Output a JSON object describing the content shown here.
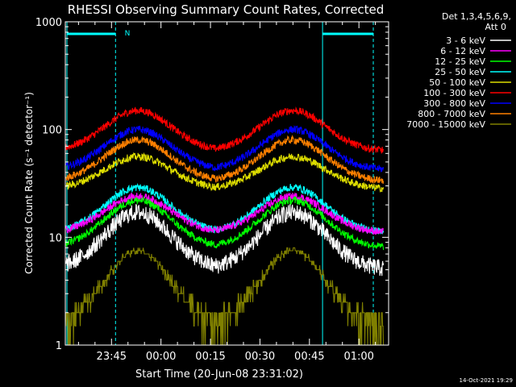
{
  "chart_data": {
    "type": "line",
    "title": "RHESSI Observing Summary Count Rates, Corrected",
    "xlabel": "Start Time (20-Jun-08 23:31:02)",
    "ylabel": "Corrected Count Rate (s⁻¹ detector⁻¹)",
    "yscale": "log",
    "ylim": [
      1,
      1000
    ],
    "xlim": [
      "23:31",
      "01:09"
    ],
    "x_ticks": [
      "23:45",
      "00:00",
      "00:15",
      "00:30",
      "00:45",
      "01:00"
    ],
    "y_ticks": [
      "1",
      "10",
      "100",
      "1000"
    ],
    "detector_label": "Det 1,3,4,5,6,9,",
    "attenuator_label": "Att 0",
    "night_marker": "N",
    "timestamp": "14-Oct-2021 19:29",
    "peak_times": [
      "23:53",
      "00:40"
    ],
    "series": [
      {
        "name": "3 - 6 keV",
        "color": "#ffffff",
        "base": 5,
        "peak": 17
      },
      {
        "name": "6 - 12 keV",
        "color": "#ff00ff",
        "base": 11,
        "peak": 24
      },
      {
        "name": "12 - 25 keV",
        "color": "#00ff00",
        "base": 8,
        "peak": 22
      },
      {
        "name": "25 - 50 keV",
        "color": "#00ffff",
        "base": 11,
        "peak": 29
      },
      {
        "name": "50 - 100 keV",
        "color": "#dddd00",
        "base": 28,
        "peak": 56
      },
      {
        "name": "100 - 300 keV",
        "color": "#ff0000",
        "base": 63,
        "peak": 150
      },
      {
        "name": "300 - 800 keV",
        "color": "#0000ff",
        "base": 42,
        "peak": 100
      },
      {
        "name": "800 - 7000 keV",
        "color": "#ff8000",
        "base": 33,
        "peak": 80
      },
      {
        "name": "7000 - 15000 keV",
        "color": "#808000",
        "base": 1.5,
        "peak": 7.5
      }
    ]
  }
}
